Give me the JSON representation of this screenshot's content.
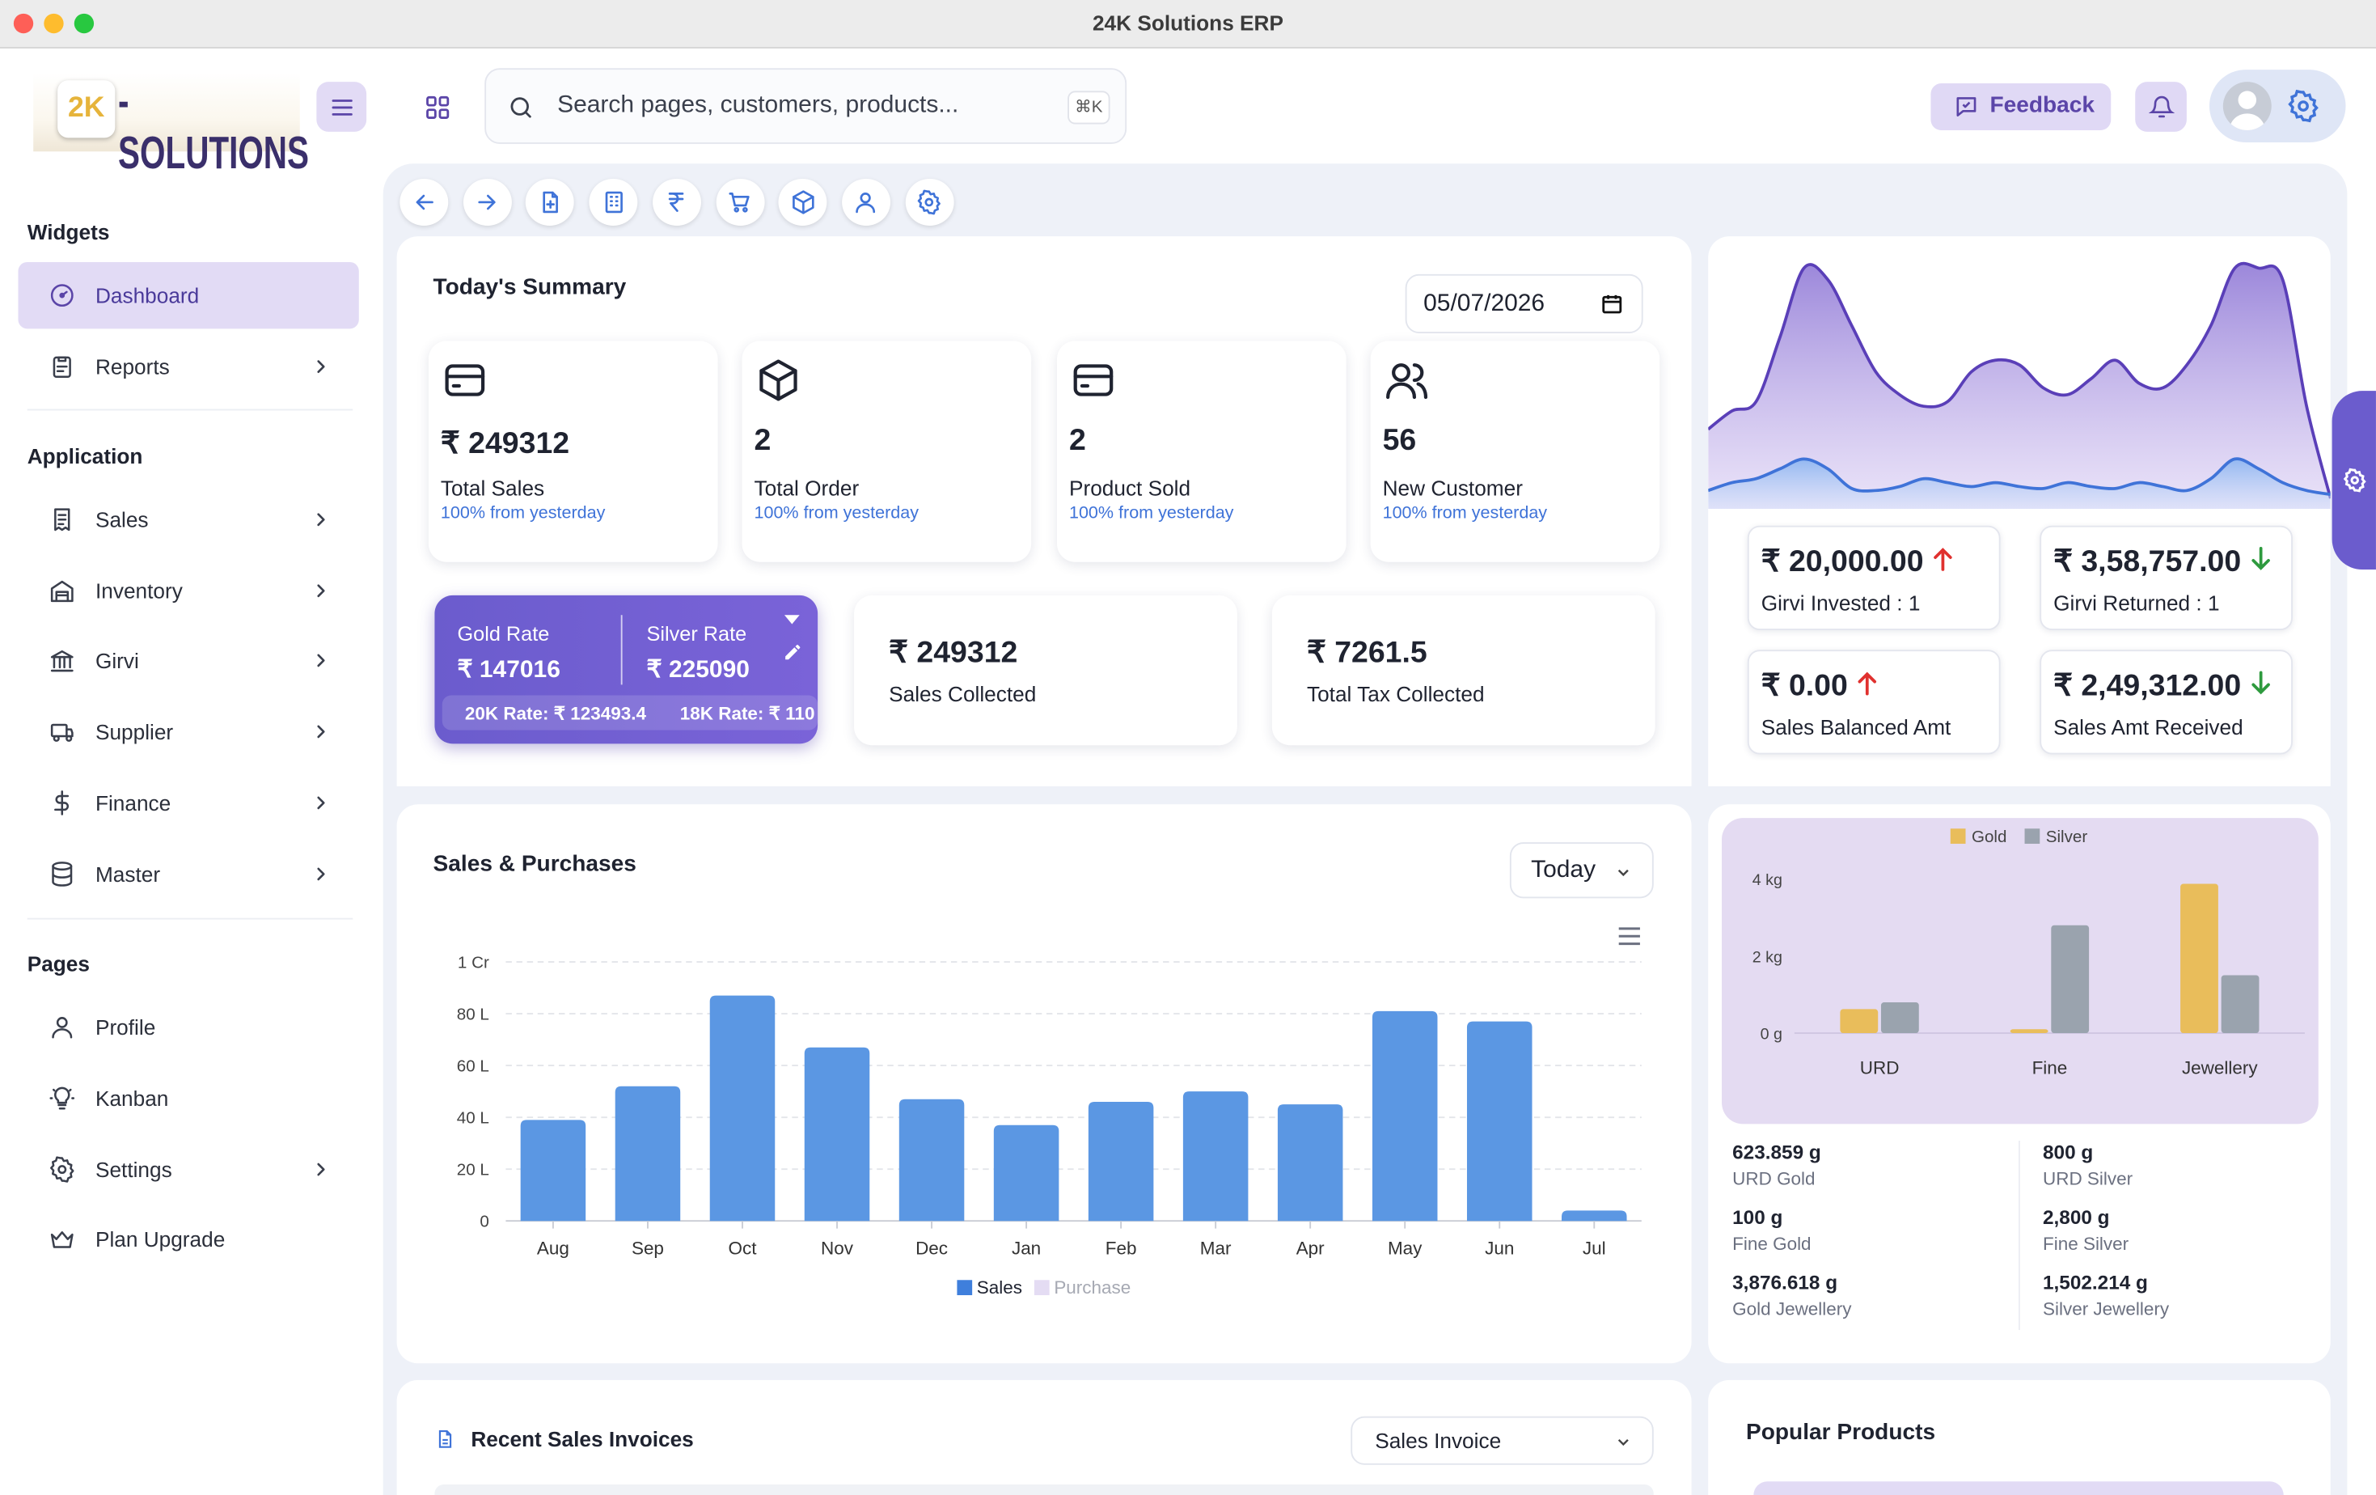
{
  "window": {
    "title": "24K Solutions ERP"
  },
  "logo": {
    "mark": "2K",
    "word": "-SOLUTIONS"
  },
  "search": {
    "placeholder": "Search pages, customers, products...",
    "shortcut": "⌘K"
  },
  "header": {
    "feedback_label": "Feedback"
  },
  "sidebar": {
    "sections": [
      {
        "title": "Widgets",
        "items": [
          {
            "label": "Dashboard",
            "icon": "gauge-icon",
            "active": true
          },
          {
            "label": "Reports",
            "icon": "clipboard-icon",
            "chevron": true
          }
        ]
      },
      {
        "title": "Application",
        "items": [
          {
            "label": "Sales",
            "icon": "receipt-icon",
            "chevron": true
          },
          {
            "label": "Inventory",
            "icon": "warehouse-icon",
            "chevron": true
          },
          {
            "label": "Girvi",
            "icon": "bank-icon",
            "chevron": true
          },
          {
            "label": "Supplier",
            "icon": "truck-icon",
            "chevron": true
          },
          {
            "label": "Finance",
            "icon": "dollar-icon",
            "chevron": true
          },
          {
            "label": "Master",
            "icon": "database-icon",
            "chevron": true
          }
        ]
      },
      {
        "title": "Pages",
        "items": [
          {
            "label": "Profile",
            "icon": "user-icon"
          },
          {
            "label": "Kanban",
            "icon": "bulb-icon"
          },
          {
            "label": "Settings",
            "icon": "gear-icon",
            "chevron": true
          },
          {
            "label": "Plan Upgrade",
            "icon": "crown-icon"
          }
        ]
      }
    ]
  },
  "quickbar": [
    "arrow-left-icon",
    "arrow-right-icon",
    "file-plus-icon",
    "building-icon",
    "rupee-icon",
    "cart-icon",
    "box-icon",
    "user-icon",
    "gear-icon"
  ],
  "summary": {
    "title": "Today's Summary",
    "date": "05/07/2026",
    "stats": [
      {
        "icon": "card-icon",
        "value": "₹ 249312",
        "label": "Total Sales",
        "sub": "100% from yesterday"
      },
      {
        "icon": "box-icon",
        "value": "2",
        "label": "Total Order",
        "sub": "100% from yesterday"
      },
      {
        "icon": "card-icon",
        "value": "2",
        "label": "Product Sold",
        "sub": "100% from yesterday"
      },
      {
        "icon": "users-icon",
        "value": "56",
        "label": "New Customer",
        "sub": "100% from yesterday"
      }
    ],
    "rates": {
      "gold_label": "Gold Rate",
      "gold_value": "₹ 147016",
      "silver_label": "Silver Rate",
      "silver_value": "₹ 225090",
      "k20": "20K Rate: ₹ 123493.4",
      "k18": "18K Rate: ₹ 110"
    },
    "collected": [
      {
        "value": "₹ 249312",
        "label": "Sales Collected"
      },
      {
        "value": "₹ 7261.5",
        "label": "Total Tax Collected"
      }
    ]
  },
  "girvi": [
    {
      "value": "₹ 20,000.00",
      "label": "Girvi Invested : 1",
      "trend": "up",
      "color": "#e0312f"
    },
    {
      "value": "₹ 3,58,757.00",
      "label": "Girvi Returned : 1",
      "trend": "down",
      "color": "#2e9a3e"
    },
    {
      "value": "₹ 0.00",
      "label": "Sales Balanced Amt",
      "trend": "up",
      "color": "#e0312f"
    },
    {
      "value": "₹ 2,49,312.00",
      "label": "Sales Amt Received",
      "trend": "down",
      "color": "#2e9a3e"
    }
  ],
  "sales_chart": {
    "title": "Sales & Purchases",
    "period": "Today",
    "legend": [
      "Sales",
      "Purchase"
    ],
    "colors": {
      "sales": "#5b97e3",
      "purchase": "#e4dcf3"
    }
  },
  "metal": {
    "legend": [
      "Gold",
      "Silver"
    ],
    "colors": {
      "gold": "#e9bd5b",
      "silver": "#9aa3ae",
      "panel": "#e4dbf2"
    },
    "stats": [
      {
        "value": "623.859 g",
        "label": "URD Gold"
      },
      {
        "value": "800 g",
        "label": "URD Silver"
      },
      {
        "value": "100 g",
        "label": "Fine Gold"
      },
      {
        "value": "2,800 g",
        "label": "Fine Silver"
      },
      {
        "value": "3,876.618 g",
        "label": "Gold Jewellery"
      },
      {
        "value": "1,502.214 g",
        "label": "Silver Jewellery"
      }
    ]
  },
  "recent": {
    "title": "Recent Sales Invoices",
    "select": "Sales Invoice"
  },
  "popular": {
    "title": "Popular Products"
  },
  "chart_data": [
    {
      "type": "bar",
      "title": "Sales & Purchases",
      "categories": [
        "Aug",
        "Sep",
        "Oct",
        "Nov",
        "Dec",
        "Jan",
        "Feb",
        "Mar",
        "Apr",
        "May",
        "Jun",
        "Jul"
      ],
      "series": [
        {
          "name": "Sales",
          "values": [
            3900000,
            5200000,
            8700000,
            6700000,
            4700000,
            3700000,
            4600000,
            5000000,
            4500000,
            8100000,
            7700000,
            400000
          ]
        },
        {
          "name": "Purchase",
          "values": [
            0,
            0,
            0,
            0,
            0,
            0,
            0,
            0,
            0,
            0,
            0,
            0
          ]
        }
      ],
      "yticks": [
        "0",
        "20 L",
        "40 L",
        "60 L",
        "80 L",
        "1 Cr"
      ],
      "ylim": [
        0,
        10000000
      ],
      "grid": true,
      "legend_position": "bottom"
    },
    {
      "type": "bar",
      "categories": [
        "URD",
        "Fine",
        "Jewellery"
      ],
      "series": [
        {
          "name": "Gold",
          "values": [
            0.624,
            0.1,
            3.877
          ]
        },
        {
          "name": "Silver",
          "values": [
            0.8,
            2.8,
            1.502
          ]
        }
      ],
      "yticks": [
        "0 g",
        "2 kg",
        "4 kg"
      ],
      "ylim": [
        0,
        4.8
      ],
      "legend_position": "top"
    },
    {
      "type": "area",
      "series": [
        {
          "name": "",
          "values": [
            30,
            38,
            42,
            70,
            100,
            95,
            75,
            55,
            45,
            40,
            42,
            55,
            60,
            58,
            48,
            45,
            52,
            60,
            50,
            48,
            58,
            75,
            100,
            100,
            95,
            40,
            0
          ]
        },
        {
          "name": "",
          "values": [
            4,
            8,
            10,
            15,
            20,
            15,
            5,
            4,
            6,
            10,
            8,
            6,
            8,
            6,
            5,
            8,
            6,
            5,
            8,
            6,
            4,
            10,
            20,
            15,
            8,
            4,
            2
          ]
        }
      ],
      "grid": false
    }
  ]
}
